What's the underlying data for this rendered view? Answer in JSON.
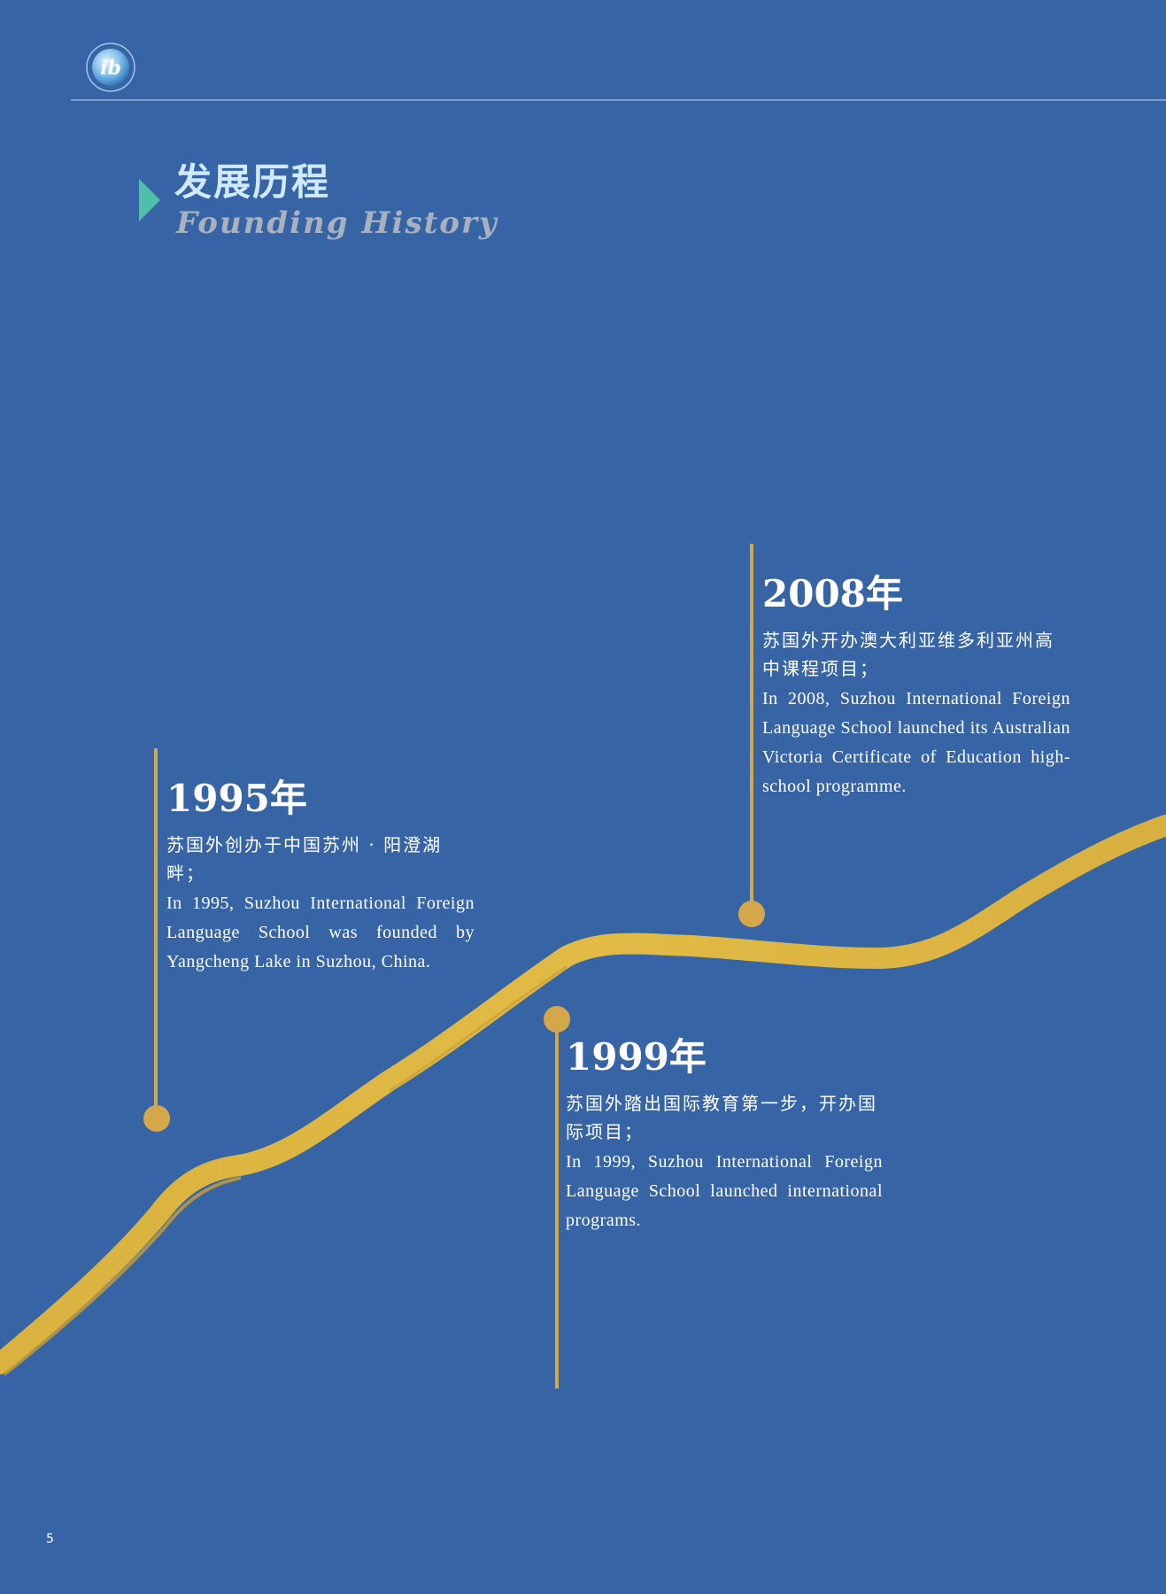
{
  "header": {
    "logo_icon": "ib-logo-icon"
  },
  "section": {
    "title_cn": "发展历程",
    "title_en": "Founding History"
  },
  "colors": {
    "background": "#3764a4",
    "gold": "#d4a84a",
    "accent": "#4fbfa9"
  },
  "timeline": [
    {
      "year": "1995年",
      "cn": "苏国外创办于中国苏州 · 阳澄湖畔；",
      "en": "In 1995, Suzhou International Foreign Language School was founded by Yangcheng Lake in Suzhou, China."
    },
    {
      "year": "1999年",
      "cn": "苏国外踏出国际教育第一步，开办国际项目；",
      "en": "In 1999, Suzhou International Foreign Language School launched international programs."
    },
    {
      "year": "2008年",
      "cn": "苏国外开办澳大利亚维多利亚州高中课程项目；",
      "en": "In 2008, Suzhou International Foreign Language School launched its Australian Victoria Certificate of Education high-school programme."
    }
  ],
  "page_number": "5"
}
